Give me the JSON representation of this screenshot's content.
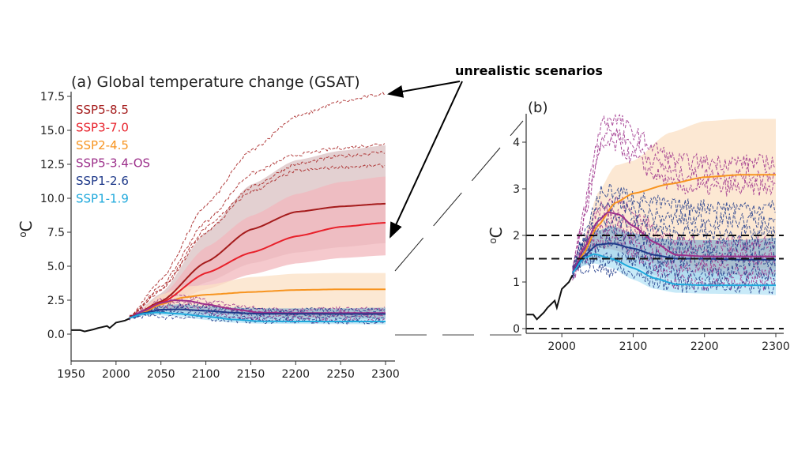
{
  "annotation": "unrealistic scenarios",
  "chart_data": [
    {
      "type": "line",
      "title": "(a) Global temperature change (GSAT)",
      "ylabel": "oC",
      "xlim": [
        1950,
        2300
      ],
      "ylim": [
        -2,
        18
      ],
      "xticks": [
        1950,
        2000,
        2050,
        2100,
        2150,
        2200,
        2250,
        2300
      ],
      "yticks": [
        "0.0",
        "2.5",
        "5.0",
        "7.5",
        "10.0",
        "12.5",
        "15.0",
        "17.5"
      ],
      "ytick_values": [
        0,
        2.5,
        5,
        7.5,
        10,
        12.5,
        15,
        17.5
      ],
      "legend_placement": "top-left",
      "historical": {
        "x": [
          1950,
          1960,
          1965,
          1975,
          1980,
          1990,
          1993,
          2000,
          2010,
          2015
        ],
        "y": [
          0.3,
          0.3,
          0.2,
          0.35,
          0.45,
          0.6,
          0.45,
          0.85,
          1.0,
          1.15
        ],
        "color": "#111111"
      },
      "series": [
        {
          "name": "SSP5-8.5",
          "color": "#a51c1c",
          "band_color": "#d9c0c2",
          "x": [
            2015,
            2050,
            2100,
            2150,
            2200,
            2250,
            2300
          ],
          "y": [
            1.2,
            2.4,
            5.3,
            7.7,
            9.0,
            9.4,
            9.6
          ],
          "low": [
            1.2,
            1.9,
            3.8,
            5.2,
            6.0,
            6.4,
            6.7
          ],
          "high": [
            1.2,
            3.0,
            7.5,
            11.0,
            12.8,
            13.5,
            13.9
          ]
        },
        {
          "name": "SSP3-7.0",
          "color": "#e8202a",
          "band_color": "#f2b7bc",
          "x": [
            2015,
            2050,
            2100,
            2150,
            2200,
            2250,
            2300
          ],
          "y": [
            1.2,
            2.3,
            4.5,
            6.0,
            7.2,
            7.9,
            8.2
          ],
          "low": [
            1.2,
            1.9,
            3.3,
            4.4,
            5.2,
            5.6,
            5.8
          ],
          "high": [
            1.2,
            2.8,
            6.4,
            8.7,
            10.3,
            11.2,
            11.6
          ]
        },
        {
          "name": "SSP2-4.5",
          "color": "#f79420",
          "band_color": "#fbe0c4",
          "x": [
            2015,
            2030,
            2050,
            2075,
            2100,
            2150,
            2200,
            2250,
            2300
          ],
          "y": [
            1.2,
            1.6,
            2.2,
            2.7,
            2.9,
            3.1,
            3.25,
            3.3,
            3.3
          ],
          "low": [
            1.2,
            1.4,
            1.6,
            1.8,
            1.9,
            1.6,
            1.25,
            1.3,
            1.3
          ],
          "high": [
            1.2,
            1.9,
            2.9,
            3.5,
            3.6,
            4.2,
            4.45,
            4.5,
            4.5
          ]
        },
        {
          "name": "SSP5-3.4-OS",
          "color": "#9c2f8a",
          "x": [
            2015,
            2030,
            2050,
            2065,
            2080,
            2100,
            2130,
            2160,
            2200,
            2250,
            2300
          ],
          "y": [
            1.2,
            1.7,
            2.3,
            2.5,
            2.45,
            2.2,
            1.85,
            1.58,
            1.55,
            1.55,
            1.55
          ]
        },
        {
          "name": "SSP1-2.6",
          "color": "#1f3a8a",
          "band_color": "#8fb3cf",
          "x": [
            2015,
            2030,
            2050,
            2070,
            2100,
            2130,
            2160,
            2200,
            2250,
            2300
          ],
          "y": [
            1.2,
            1.55,
            1.8,
            1.83,
            1.72,
            1.58,
            1.5,
            1.5,
            1.48,
            1.48
          ],
          "low": [
            1.2,
            1.35,
            1.5,
            1.45,
            1.35,
            1.15,
            1.05,
            1.05,
            1.05,
            1.1
          ],
          "high": [
            1.2,
            1.7,
            2.1,
            2.2,
            2.05,
            1.95,
            1.9,
            1.9,
            1.9,
            1.95
          ]
        },
        {
          "name": "SSP1-1.9",
          "color": "#1fa9dc",
          "band_color": "#b6e3f5",
          "x": [
            2015,
            2030,
            2045,
            2070,
            2100,
            2130,
            2160,
            2200,
            2250,
            2300
          ],
          "y": [
            1.2,
            1.5,
            1.6,
            1.5,
            1.3,
            1.08,
            0.95,
            0.93,
            0.93,
            0.93
          ],
          "low": [
            1.2,
            1.35,
            1.4,
            1.3,
            1.05,
            0.85,
            0.77,
            0.75,
            0.74,
            0.72
          ],
          "high": [
            1.2,
            1.6,
            1.75,
            1.7,
            1.55,
            1.4,
            1.25,
            1.2,
            1.15,
            1.15
          ]
        }
      ],
      "unrealistic_members": [
        {
          "scenario": "SSP5-8.5",
          "x": [
            2015,
            2050,
            2100,
            2150,
            2200,
            2250,
            2300
          ],
          "y": [
            1.3,
            4.0,
            9.5,
            13.5,
            16.0,
            17.1,
            17.7
          ]
        },
        {
          "scenario": "SSP5-8.5",
          "x": [
            2015,
            2050,
            2100,
            2150,
            2200,
            2250,
            2300
          ],
          "y": [
            1.3,
            3.5,
            8.3,
            11.8,
            13.2,
            13.7,
            14.0
          ]
        },
        {
          "scenario": "SSP5-8.5",
          "x": [
            2015,
            2050,
            2100,
            2150,
            2200,
            2250,
            2300
          ],
          "y": [
            1.3,
            3.3,
            7.8,
            10.8,
            12.5,
            13.1,
            13.4
          ]
        },
        {
          "scenario": "SSP5-8.5",
          "x": [
            2015,
            2050,
            2100,
            2150,
            2200,
            2250,
            2300
          ],
          "y": [
            1.3,
            3.2,
            7.5,
            10.5,
            12.0,
            12.3,
            12.4
          ]
        }
      ]
    },
    {
      "type": "line",
      "title": "(b)",
      "ylabel": "oC",
      "xlim": [
        1950,
        2300
      ],
      "ylim": [
        -0.1,
        4.5
      ],
      "xticks": [
        2000,
        2100,
        2200,
        2300
      ],
      "yticks": [
        "0",
        "1",
        "2",
        "3",
        "4"
      ],
      "ytick_values": [
        0,
        1,
        2,
        3,
        4
      ],
      "reference_lines": [
        0,
        1.5,
        2.0
      ],
      "shown_series": [
        "SSP2-4.5",
        "SSP5-3.4-OS",
        "SSP1-2.6",
        "SSP1-1.9"
      ]
    }
  ]
}
